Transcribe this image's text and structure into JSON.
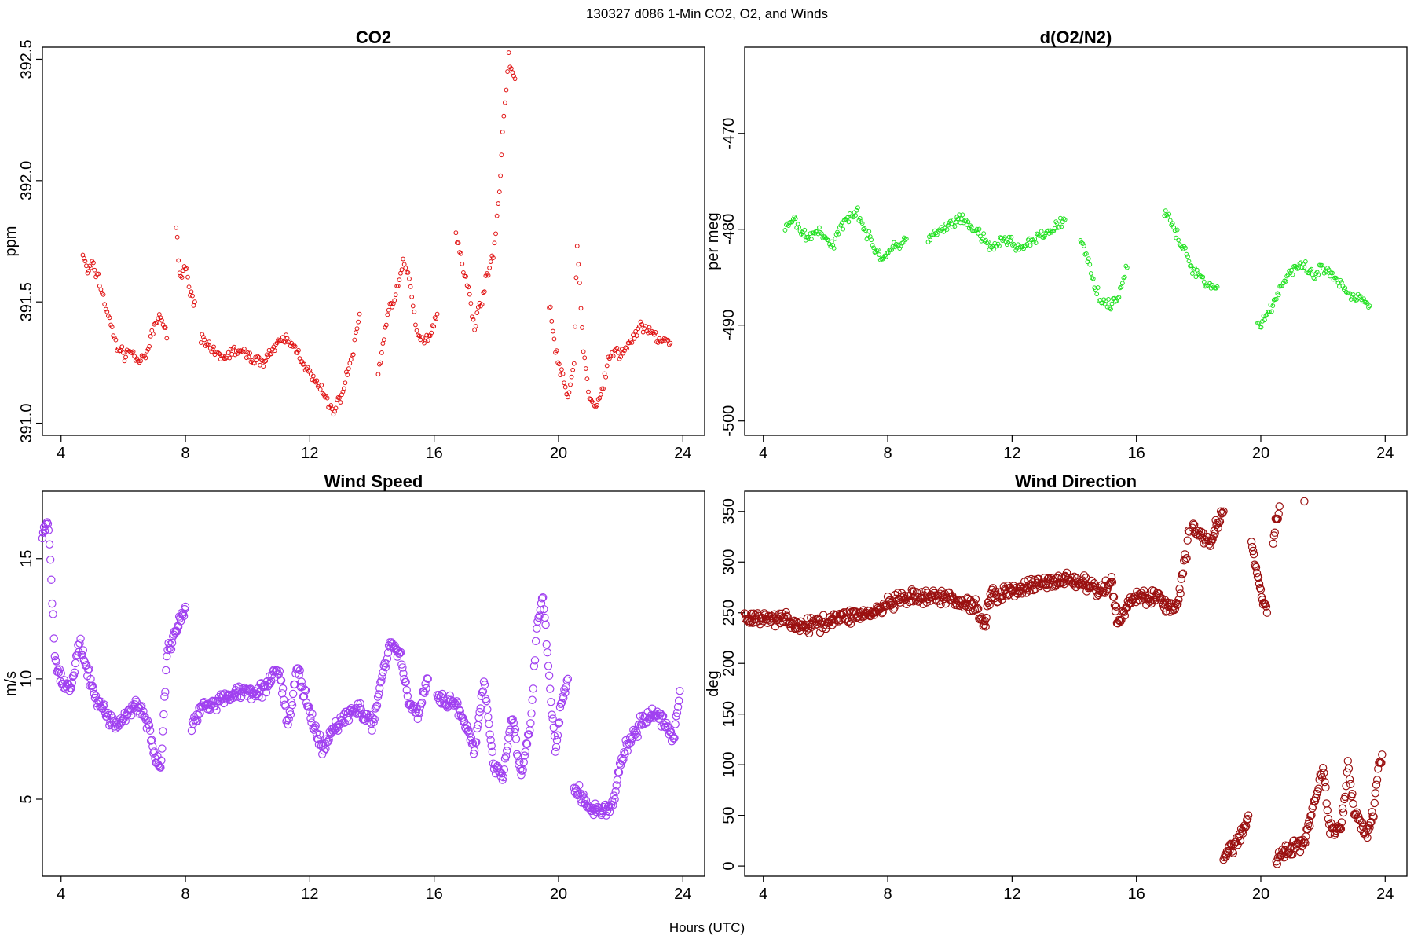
{
  "figure": {
    "title": "130327   d086   1-Min CO2, O2, and Winds",
    "xlabel": "Hours (UTC)"
  },
  "chart_data": [
    {
      "type": "scatter",
      "title": "CO2",
      "ylabel": "ppm",
      "xlim": [
        3.4,
        24.7
      ],
      "ylim": [
        390.95,
        392.55
      ],
      "xticks": [
        4,
        8,
        12,
        16,
        20,
        24
      ],
      "yticks": [
        391.0,
        391.5,
        392.0,
        392.5
      ],
      "ytick_labels": [
        "391.0",
        "391.5",
        "392.0",
        "392.5"
      ],
      "color": "#e01010",
      "marker_size": "small",
      "segments": [
        {
          "x": [
            4.7,
            4.85,
            5.0,
            5.2,
            5.4,
            5.6,
            5.8,
            6.0,
            6.2,
            6.4,
            6.6,
            6.8,
            7.0,
            7.2,
            7.4
          ],
          "y": [
            391.7,
            391.62,
            391.65,
            391.6,
            391.5,
            391.4,
            391.32,
            391.28,
            391.3,
            391.27,
            391.25,
            391.3,
            391.4,
            391.45,
            391.35
          ]
        },
        {
          "x": [
            7.7,
            7.85,
            8.0,
            8.15,
            8.3
          ],
          "y": [
            391.8,
            391.6,
            391.65,
            391.55,
            391.5
          ]
        },
        {
          "x": [
            8.5,
            8.8,
            9.2,
            9.6,
            10.0,
            10.4,
            10.8,
            11.2,
            11.6,
            12.0,
            12.3,
            12.6,
            12.8,
            13.1,
            13.4,
            13.6
          ],
          "y": [
            391.35,
            391.3,
            391.27,
            391.3,
            391.28,
            391.25,
            391.3,
            391.35,
            391.3,
            391.2,
            391.15,
            391.08,
            391.05,
            391.15,
            391.3,
            391.45
          ]
        },
        {
          "x": [
            14.2,
            14.5,
            14.8,
            15.0,
            15.2,
            15.4,
            15.6,
            15.8,
            16.1
          ],
          "y": [
            391.2,
            391.45,
            391.55,
            391.65,
            391.6,
            391.4,
            391.35,
            391.35,
            391.45
          ]
        },
        {
          "x": [
            16.7,
            16.9,
            17.1,
            17.3,
            17.5,
            17.7,
            17.9,
            18.1,
            18.2,
            18.4,
            18.6
          ],
          "y": [
            391.8,
            391.65,
            391.55,
            391.4,
            391.5,
            391.6,
            391.7,
            391.95,
            392.2,
            392.5,
            392.42
          ]
        },
        {
          "x": [
            19.7,
            19.9,
            20.1,
            20.3,
            20.5,
            20.6,
            20.8,
            21.0,
            21.2,
            21.4,
            21.6,
            21.8,
            22.0,
            22.2,
            22.4,
            22.6,
            22.8,
            23.0,
            23.2,
            23.4,
            23.6
          ],
          "y": [
            391.5,
            391.3,
            391.2,
            391.1,
            391.25,
            391.75,
            391.3,
            391.1,
            391.05,
            391.15,
            391.25,
            391.3,
            391.28,
            391.32,
            391.35,
            391.4,
            391.38,
            391.37,
            391.35,
            391.34,
            391.33
          ]
        }
      ]
    },
    {
      "type": "scatter",
      "title": "d(O2/N2)",
      "ylabel": "per meg",
      "xlim": [
        3.4,
        24.7
      ],
      "ylim": [
        -501.5,
        -461
      ],
      "xticks": [
        4,
        8,
        12,
        16,
        20,
        24
      ],
      "yticks": [
        -500,
        -490,
        -480,
        -470
      ],
      "ytick_labels": [
        "-500",
        "-490",
        "-480",
        "-470"
      ],
      "color": "#1ee01e",
      "marker_size": "small",
      "segments": [
        {
          "x": [
            4.7,
            5.0,
            5.4,
            5.8,
            6.2,
            6.6,
            7.0,
            7.4,
            7.8,
            8.2,
            8.6
          ],
          "y": [
            -480,
            -479,
            -481,
            -480,
            -482,
            -479,
            -478,
            -481,
            -483,
            -482,
            -481
          ]
        },
        {
          "x": [
            9.3,
            9.8,
            10.3,
            10.8,
            11.3,
            11.8,
            12.3,
            12.8,
            13.3,
            13.7
          ],
          "y": [
            -481,
            -480,
            -479,
            -480,
            -482,
            -481,
            -482,
            -481,
            -480,
            -479
          ]
        },
        {
          "x": [
            14.2,
            14.5,
            14.8,
            15.1,
            15.4,
            15.7
          ],
          "y": [
            -481,
            -484,
            -487,
            -488,
            -487,
            -484
          ]
        },
        {
          "x": [
            16.9,
            17.2,
            17.5,
            17.8,
            18.1,
            18.4,
            18.6
          ],
          "y": [
            -478,
            -480,
            -482,
            -484,
            -485,
            -486,
            -486
          ]
        },
        {
          "x": [
            19.9,
            20.2,
            20.5,
            20.8,
            21.1,
            21.4,
            21.7,
            22.0,
            22.3,
            22.6,
            22.9,
            23.2,
            23.5
          ],
          "y": [
            -490,
            -489,
            -487,
            -485,
            -484,
            -484,
            -485,
            -484,
            -485,
            -486,
            -487,
            -487,
            -488
          ]
        }
      ]
    },
    {
      "type": "scatter",
      "title": "Wind Speed",
      "ylabel": "m/s",
      "xlim": [
        3.4,
        24.7
      ],
      "ylim": [
        1.8,
        17.8
      ],
      "xticks": [
        4,
        8,
        12,
        16,
        20,
        24
      ],
      "yticks": [
        5,
        10,
        15
      ],
      "ytick_labels": [
        "5",
        "10",
        "15"
      ],
      "color": "#a040f0",
      "marker_size": "large",
      "segments": [
        {
          "x": [
            3.4,
            3.6,
            3.8,
            4.0,
            4.3,
            4.6,
            4.9,
            5.2,
            5.5,
            5.8,
            6.1,
            6.4,
            6.7,
            7.0,
            7.2,
            7.4,
            7.6,
            7.8,
            8.0
          ],
          "y": [
            16.0,
            16.5,
            11.0,
            10.0,
            9.5,
            11.5,
            10.0,
            9.0,
            8.5,
            8.0,
            8.5,
            9.0,
            8.5,
            7.0,
            6.0,
            11.0,
            11.8,
            12.3,
            13.0
          ]
        },
        {
          "x": [
            8.2,
            8.6,
            9.0,
            9.4,
            9.8,
            10.2,
            10.6,
            11.0,
            11.3,
            11.6,
            12.0,
            12.4,
            12.8,
            13.2,
            13.6,
            14.0,
            14.3,
            14.6,
            14.9,
            15.2,
            15.5,
            15.8
          ],
          "y": [
            8.0,
            9.0,
            9.0,
            9.3,
            9.5,
            9.5,
            9.6,
            10.5,
            8.0,
            10.5,
            8.5,
            7.0,
            8.0,
            8.5,
            8.8,
            8.0,
            10.0,
            11.5,
            11.0,
            9.0,
            8.5,
            10.0
          ]
        },
        {
          "x": [
            16.1,
            16.4,
            16.7,
            17.0,
            17.3,
            17.6,
            17.9,
            18.2,
            18.5,
            18.8,
            19.1,
            19.3,
            19.5,
            19.7,
            19.9,
            20.1,
            20.3
          ],
          "y": [
            9.5,
            9.0,
            9.0,
            8.0,
            7.0,
            10.0,
            6.5,
            6.0,
            8.5,
            6.0,
            8.0,
            12.0,
            13.5,
            10.0,
            7.0,
            9.0,
            10.0
          ]
        },
        {
          "x": [
            20.5,
            20.8,
            21.1,
            21.4,
            21.7,
            22.0,
            22.3,
            22.6,
            22.9,
            23.2,
            23.5,
            23.7,
            23.9
          ],
          "y": [
            5.5,
            5.0,
            4.5,
            4.6,
            4.5,
            6.5,
            7.5,
            8.0,
            8.5,
            8.5,
            8.0,
            7.5,
            9.5
          ]
        }
      ]
    },
    {
      "type": "scatter",
      "title": "Wind Direction",
      "ylabel": "deg",
      "xlim": [
        3.4,
        24.7
      ],
      "ylim": [
        -10,
        370
      ],
      "xticks": [
        4,
        8,
        12,
        16,
        20,
        24
      ],
      "yticks": [
        0,
        50,
        100,
        150,
        200,
        250,
        300,
        350
      ],
      "ytick_labels": [
        "0",
        "50",
        "100",
        "150",
        "200",
        "250",
        "300",
        "350"
      ],
      "color": "#9a1010",
      "marker_size": "large",
      "segments": [
        {
          "x": [
            3.4,
            4.0,
            4.6,
            5.2,
            5.8,
            6.4,
            7.0,
            7.6,
            8.0,
            8.4,
            8.8,
            9.2,
            9.6,
            10.0,
            10.4,
            10.8,
            11.1,
            11.3,
            11.6,
            12.0,
            12.4,
            12.8,
            13.2,
            13.6,
            14.0,
            14.4,
            14.8,
            15.2,
            15.4,
            15.6,
            15.8,
            16.1,
            16.4,
            16.7,
            17.0,
            17.3,
            17.5,
            17.7
          ],
          "y": [
            245,
            243,
            247,
            235,
            240,
            245,
            248,
            250,
            258,
            262,
            265,
            264,
            266,
            264,
            260,
            258,
            238,
            268,
            268,
            272,
            275,
            278,
            280,
            283,
            282,
            278,
            270,
            280,
            240,
            252,
            262,
            268,
            262,
            268,
            255,
            258,
            290,
            330
          ]
        },
        {
          "x": [
            17.8,
            18.0,
            18.2,
            18.4,
            18.6,
            18.8
          ],
          "y": [
            335,
            330,
            325,
            320,
            340,
            350
          ]
        },
        {
          "x": [
            18.8,
            19.0,
            19.2,
            19.4,
            19.6
          ],
          "y": [
            5,
            15,
            25,
            30,
            50
          ]
        },
        {
          "x": [
            19.7,
            19.8,
            19.9,
            20.0,
            20.1,
            20.2
          ],
          "y": [
            320,
            300,
            285,
            270,
            260,
            250
          ]
        },
        {
          "x": [
            20.4,
            20.5,
            20.6
          ],
          "y": [
            320,
            340,
            355
          ]
        },
        {
          "x": [
            21.4
          ],
          "y": [
            360
          ]
        },
        {
          "x": [
            20.5,
            20.8,
            21.1,
            21.4,
            21.6,
            21.8,
            22.0,
            22.2,
            22.4,
            22.6,
            22.8,
            23.0,
            23.2,
            23.4,
            23.6,
            23.8,
            23.9
          ],
          "y": [
            5,
            15,
            20,
            25,
            50,
            70,
            100,
            40,
            35,
            40,
            100,
            55,
            45,
            30,
            50,
            95,
            110
          ]
        }
      ]
    }
  ]
}
